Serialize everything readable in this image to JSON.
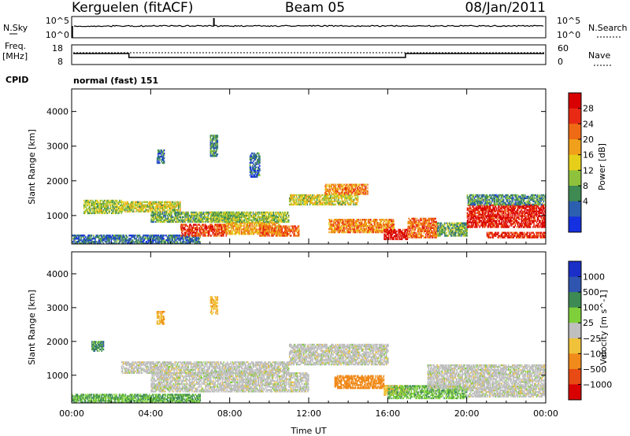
{
  "header": {
    "station": "Kerguelen (fitACF)",
    "beam": "Beam 05",
    "date": "08/Jan/2011"
  },
  "status_panel": {
    "nsky_label": "N.Sky",
    "nsearch_label": "N.Search",
    "freq_label_line1": "Freq.",
    "freq_label_line2": "[MHz]",
    "nave_label": "Nave",
    "cpid_label": "CPID",
    "cpid_value": "normal (fast) 151",
    "noise_ticks": [
      "10^5",
      "10^0"
    ],
    "freq_ticks": [
      "18",
      "8"
    ],
    "nave_ticks": [
      "60",
      "0"
    ]
  },
  "colors": {
    "power_scale": [
      "#1530e0",
      "#2d5fb0",
      "#3e8a52",
      "#8fc23c",
      "#e6cf19",
      "#f0a01a",
      "#ef6a14",
      "#e82a14",
      "#d80000"
    ],
    "velocity_scale": [
      "#1a2fc8",
      "#2f55b0",
      "#3d8a54",
      "#7fcf3a",
      "#bfbfbf",
      "#f0c23a",
      "#f08a1a",
      "#e84a14",
      "#d80000"
    ],
    "ground_scatter": "#bebebe"
  },
  "chart_data": [
    {
      "type": "heatmap",
      "name": "Power",
      "xlabel": "Time UT",
      "ylabel": "Slant Range [km]",
      "x_ticks": [
        "00:00",
        "04:00",
        "08:00",
        "12:00",
        "16:00",
        "20:00",
        "00:00"
      ],
      "xlim_hours": [
        0,
        24
      ],
      "y_ticks": [
        1000,
        2000,
        3000,
        4000
      ],
      "ylim": [
        180,
        4650
      ],
      "colorbar": {
        "label": "Power [dB]",
        "ticks": [
          4,
          8,
          12,
          16,
          20,
          24,
          28
        ],
        "range": [
          0,
          30
        ]
      },
      "regions": [
        {
          "t0": 0.0,
          "t1": 6.5,
          "r0": 180,
          "r1": 450,
          "value": 6
        },
        {
          "t0": 0.6,
          "t1": 2.5,
          "r0": 1050,
          "r1": 1450,
          "value": 12
        },
        {
          "t0": 2.5,
          "t1": 5.5,
          "r0": 1100,
          "r1": 1400,
          "value": 14
        },
        {
          "t0": 4.0,
          "t1": 8.5,
          "r0": 800,
          "r1": 1100,
          "value": 10
        },
        {
          "t0": 5.5,
          "t1": 7.8,
          "r0": 400,
          "r1": 750,
          "value": 24
        },
        {
          "t0": 7.8,
          "t1": 10.5,
          "r0": 450,
          "r1": 800,
          "value": 18
        },
        {
          "t0": 7.0,
          "t1": 11.0,
          "r0": 800,
          "r1": 1100,
          "value": 12
        },
        {
          "t0": 9.5,
          "t1": 11.5,
          "r0": 400,
          "r1": 700,
          "value": 22
        },
        {
          "t0": 11.0,
          "t1": 14.5,
          "r0": 1300,
          "r1": 1600,
          "value": 14
        },
        {
          "t0": 12.8,
          "t1": 15.0,
          "r0": 1600,
          "r1": 1900,
          "value": 20
        },
        {
          "t0": 13.0,
          "t1": 16.3,
          "r0": 500,
          "r1": 900,
          "value": 20
        },
        {
          "t0": 15.8,
          "t1": 17.0,
          "r0": 300,
          "r1": 600,
          "value": 28
        },
        {
          "t0": 17.0,
          "t1": 18.5,
          "r0": 350,
          "r1": 900,
          "value": 22
        },
        {
          "t0": 18.5,
          "t1": 20.0,
          "r0": 400,
          "r1": 800,
          "value": 10
        },
        {
          "t0": 20.0,
          "t1": 24.0,
          "r0": 650,
          "r1": 1300,
          "value": 27
        },
        {
          "t0": 20.0,
          "t1": 24.0,
          "r0": 1300,
          "r1": 1600,
          "value": 8
        },
        {
          "t0": 21.0,
          "t1": 24.0,
          "r0": 350,
          "r1": 500,
          "value": 26
        },
        {
          "t0": 7.0,
          "t1": 7.4,
          "r0": 2700,
          "r1": 3300,
          "value": 8
        },
        {
          "t0": 4.3,
          "t1": 4.7,
          "r0": 2500,
          "r1": 2900,
          "value": 6
        },
        {
          "t0": 9.0,
          "t1": 9.5,
          "r0": 2100,
          "r1": 2800,
          "value": 6
        }
      ]
    },
    {
      "type": "heatmap",
      "name": "Velocity",
      "xlabel": "Time UT",
      "ylabel": "Slant Range [km]",
      "x_ticks": [
        "00:00",
        "04:00",
        "08:00",
        "12:00",
        "16:00",
        "20:00",
        "00:00"
      ],
      "xlim_hours": [
        0,
        24
      ],
      "y_ticks": [
        1000,
        2000,
        3000,
        4000
      ],
      "ylim": [
        180,
        4650
      ],
      "colorbar": {
        "label": "Velocity [m s^-1]",
        "ticks": [
          "1000",
          "500",
          "100",
          "25",
          "−25",
          "−100",
          "−500",
          "−1000"
        ]
      },
      "regions": [
        {
          "t0": 0.0,
          "t1": 6.5,
          "r0": 180,
          "r1": 450,
          "value": 60
        },
        {
          "t0": 2.5,
          "t1": 11.0,
          "r0": 1050,
          "r1": 1400,
          "value": 0
        },
        {
          "t0": 4.0,
          "t1": 12.0,
          "r0": 500,
          "r1": 1050,
          "value": 0
        },
        {
          "t0": 11.0,
          "t1": 16.0,
          "r0": 1300,
          "r1": 1900,
          "value": 0
        },
        {
          "t0": 13.3,
          "t1": 15.8,
          "r0": 600,
          "r1": 1000,
          "value": -300
        },
        {
          "t0": 15.8,
          "t1": 17.0,
          "r0": 400,
          "r1": 700,
          "value": -80
        },
        {
          "t0": 16.0,
          "t1": 20.0,
          "r0": 300,
          "r1": 700,
          "value": 50
        },
        {
          "t0": 18.0,
          "t1": 24.0,
          "r0": 600,
          "r1": 1300,
          "value": 0
        },
        {
          "t0": 20.0,
          "t1": 24.0,
          "r0": 350,
          "r1": 600,
          "value": 0
        },
        {
          "t0": 1.0,
          "t1": 1.6,
          "r0": 1700,
          "r1": 2000,
          "value": 80
        },
        {
          "t0": 4.3,
          "t1": 4.7,
          "r0": 2500,
          "r1": 2900,
          "value": -100
        },
        {
          "t0": 7.0,
          "t1": 7.4,
          "r0": 2800,
          "r1": 3300,
          "value": -80
        }
      ]
    }
  ]
}
